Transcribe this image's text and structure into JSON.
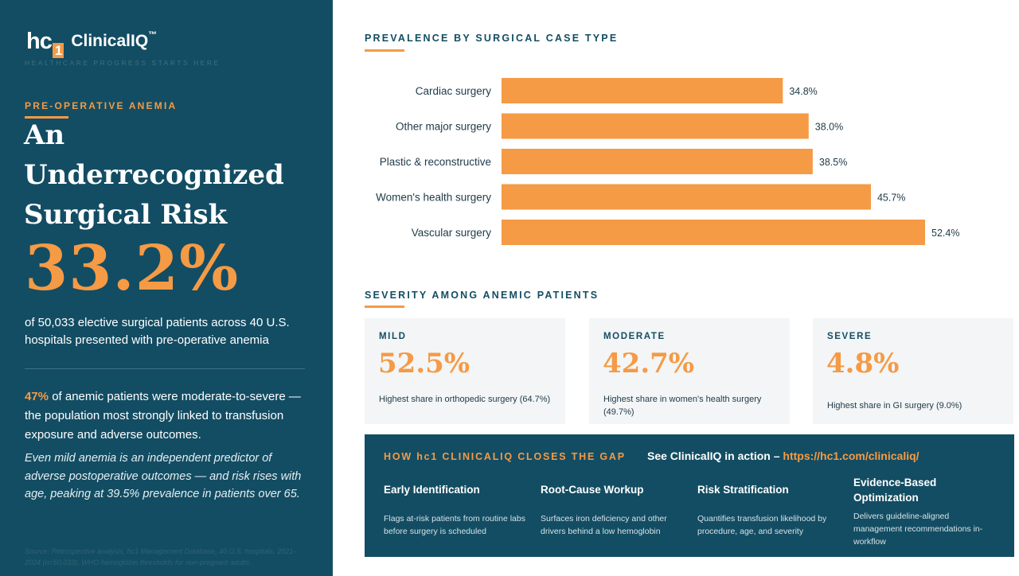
{
  "brand": {
    "mark_main": "hc",
    "mark_sub": "1",
    "name": "ClinicalIQ",
    "tm": "™",
    "tagline": "HEALTHCARE PROGRESS STARTS HERE"
  },
  "left": {
    "kicker": "PRE-OPERATIVE ANEMIA",
    "headline_line1": "An",
    "headline_line2": "Underrecognized",
    "headline_line3": "Surgical Risk",
    "big_stat": "33.2%",
    "big_desc": "of 50,033 elective surgical patients across 40 U.S. hospitals presented with pre-operative anemia",
    "note1_highlight": "47%",
    "note1_rest": " of anemic patients were moderate-to-severe — the population most strongly linked to transfusion exposure and adverse outcomes.",
    "note2": "Even mild anemia is an independent predictor of adverse postoperative outcomes — and risk rises with age, peaking at 39.5% prevalence in patients over 65.",
    "source": "Source: Retrospective analysis, hc1 Management Database, 40 U.S. hospitals, 2021–2024 (n=50,033). WHO hemoglobin thresholds for non-pregnant adults."
  },
  "sections": {
    "prevalence_title": "PREVALENCE BY SURGICAL CASE TYPE",
    "severity_title": "SEVERITY AMONG ANEMIC PATIENTS"
  },
  "colors": {
    "navy": "#134d63",
    "orange": "#f59a45"
  },
  "chart_data": {
    "type": "bar",
    "orientation": "horizontal",
    "title": "PREVALENCE BY SURGICAL CASE TYPE",
    "categories": [
      "Cardiac surgery",
      "Other major surgery",
      "Plastic & reconstructive",
      "Women's health surgery",
      "Vascular surgery"
    ],
    "values": [
      34.8,
      38.0,
      38.5,
      45.7,
      52.4
    ],
    "value_labels": [
      "34.8%",
      "38.0%",
      "38.5%",
      "45.7%",
      "52.4%"
    ],
    "xlim": [
      0,
      52.4
    ],
    "grid": false,
    "legend": "none",
    "bar_color": "#f59a45"
  },
  "severity": [
    {
      "label": "MILD",
      "value": "52.5%",
      "desc": "Highest share in orthopedic surgery (64.7%)"
    },
    {
      "label": "MODERATE",
      "value": "42.7%",
      "desc": "Highest share in women's health surgery (49.7%)"
    },
    {
      "label": "SEVERE",
      "value": "4.8%",
      "desc": "Highest share in GI surgery (9.0%)"
    }
  ],
  "panel": {
    "heading": "HOW hc1 CLINICALIQ CLOSES THE GAP",
    "cta_text": "See ClinicalIQ in action –",
    "cta_url": "https://hc1.com/clinicaliq/",
    "columns": [
      {
        "title": "Early Identification",
        "desc": "Flags at-risk patients from routine labs before surgery is scheduled"
      },
      {
        "title": "Root-Cause Workup",
        "desc": "Surfaces iron deficiency and other drivers behind a low hemoglobin"
      },
      {
        "title": "Risk Stratification",
        "desc": "Quantifies transfusion likelihood by procedure, age, and severity"
      },
      {
        "title": "Evidence-Based Optimization",
        "desc": "Delivers guideline-aligned management recommendations in-workflow"
      }
    ]
  }
}
